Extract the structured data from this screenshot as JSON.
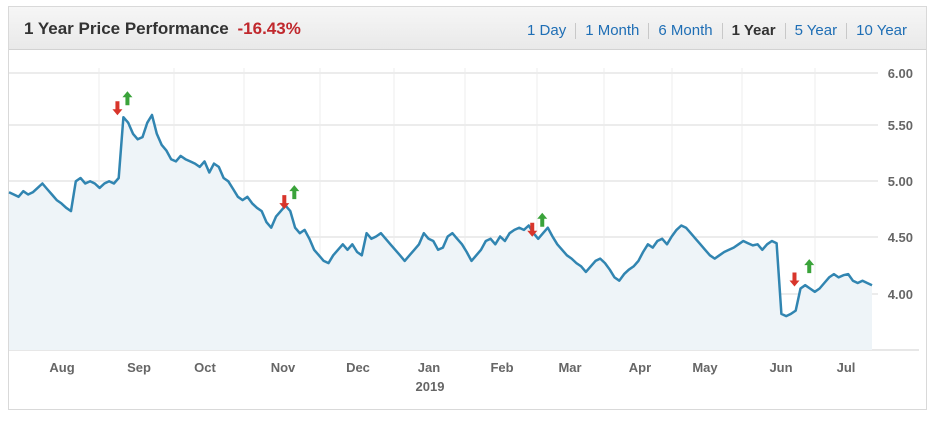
{
  "header": {
    "title": "1 Year Price Performance",
    "change": "-16.43%"
  },
  "range_buttons": [
    {
      "label": "1 Day",
      "active": false
    },
    {
      "label": "1 Month",
      "active": false
    },
    {
      "label": "6 Month",
      "active": false
    },
    {
      "label": "1 Year",
      "active": true
    },
    {
      "label": "5 Year",
      "active": false
    },
    {
      "label": "10 Year",
      "active": false
    }
  ],
  "colors": {
    "line": "#3185b1",
    "area": "#eef4f8",
    "change_negative": "#c0282d",
    "arrow_up": "#3aa33a",
    "arrow_down": "#d8352b",
    "link": "#1e6eb5"
  },
  "chart_data": {
    "type": "line",
    "title": "",
    "xlabel": "",
    "ylabel": "",
    "ylim": [
      3.5,
      6.0
    ],
    "y_ticks": [
      "4.00",
      "4.50",
      "5.00",
      "5.50",
      "6.00"
    ],
    "x_ticks": [
      "Aug",
      "Sep",
      "Oct",
      "Nov",
      "Dec",
      "Jan",
      "Feb",
      "Mar",
      "Apr",
      "May",
      "Jun",
      "Jul"
    ],
    "x_year_label": "2019",
    "grid": true,
    "series": [
      {
        "values": [
          4.92,
          4.9,
          4.88,
          4.93,
          4.9,
          4.92,
          4.96,
          5.0,
          4.95,
          4.9,
          4.85,
          4.82,
          4.78,
          4.75,
          5.02,
          5.05,
          5.0,
          5.02,
          5.0,
          4.96,
          5.0,
          5.02,
          5.0,
          5.05,
          5.6,
          5.55,
          5.45,
          5.4,
          5.42,
          5.55,
          5.62,
          5.45,
          5.35,
          5.3,
          5.22,
          5.2,
          5.25,
          5.22,
          5.2,
          5.18,
          5.15,
          5.2,
          5.1,
          5.18,
          5.15,
          5.05,
          5.02,
          4.95,
          4.88,
          4.85,
          4.88,
          4.82,
          4.78,
          4.75,
          4.65,
          4.6,
          4.7,
          4.75,
          4.8,
          4.75,
          4.6,
          4.55,
          4.58,
          4.5,
          4.4,
          4.35,
          4.3,
          4.28,
          4.35,
          4.4,
          4.45,
          4.4,
          4.45,
          4.38,
          4.35,
          4.55,
          4.5,
          4.52,
          4.55,
          4.5,
          4.45,
          4.4,
          4.35,
          4.3,
          4.35,
          4.4,
          4.45,
          4.55,
          4.5,
          4.48,
          4.4,
          4.42,
          4.52,
          4.55,
          4.5,
          4.45,
          4.38,
          4.3,
          4.35,
          4.4,
          4.48,
          4.5,
          4.45,
          4.52,
          4.48,
          4.55,
          4.58,
          4.6,
          4.58,
          4.62,
          4.55,
          4.5,
          4.55,
          4.6,
          4.52,
          4.45,
          4.4,
          4.35,
          4.32,
          4.28,
          4.25,
          4.2,
          4.25,
          4.3,
          4.32,
          4.28,
          4.22,
          4.15,
          4.12,
          4.18,
          4.22,
          4.25,
          4.3,
          4.38,
          4.45,
          4.42,
          4.48,
          4.5,
          4.45,
          4.52,
          4.58,
          4.62,
          4.6,
          4.55,
          4.5,
          4.45,
          4.4,
          4.35,
          4.32,
          4.35,
          4.38,
          4.4,
          4.42,
          4.45,
          4.48,
          4.46,
          4.44,
          4.45,
          4.4,
          4.45,
          4.48,
          4.46,
          3.82,
          3.8,
          3.82,
          3.85,
          4.05,
          4.08,
          4.05,
          4.02,
          4.05,
          4.1,
          4.15,
          4.18,
          4.15,
          4.17,
          4.18,
          4.12,
          4.1,
          4.12,
          4.1,
          4.08
        ]
      }
    ],
    "markers": [
      {
        "type": "down",
        "index": 24
      },
      {
        "type": "up",
        "index": 24
      },
      {
        "type": "down",
        "index": 59
      },
      {
        "type": "up",
        "index": 59
      },
      {
        "type": "down",
        "index": 111
      },
      {
        "type": "up",
        "index": 111
      },
      {
        "type": "down",
        "index": 166
      },
      {
        "type": "up",
        "index": 167
      }
    ]
  }
}
